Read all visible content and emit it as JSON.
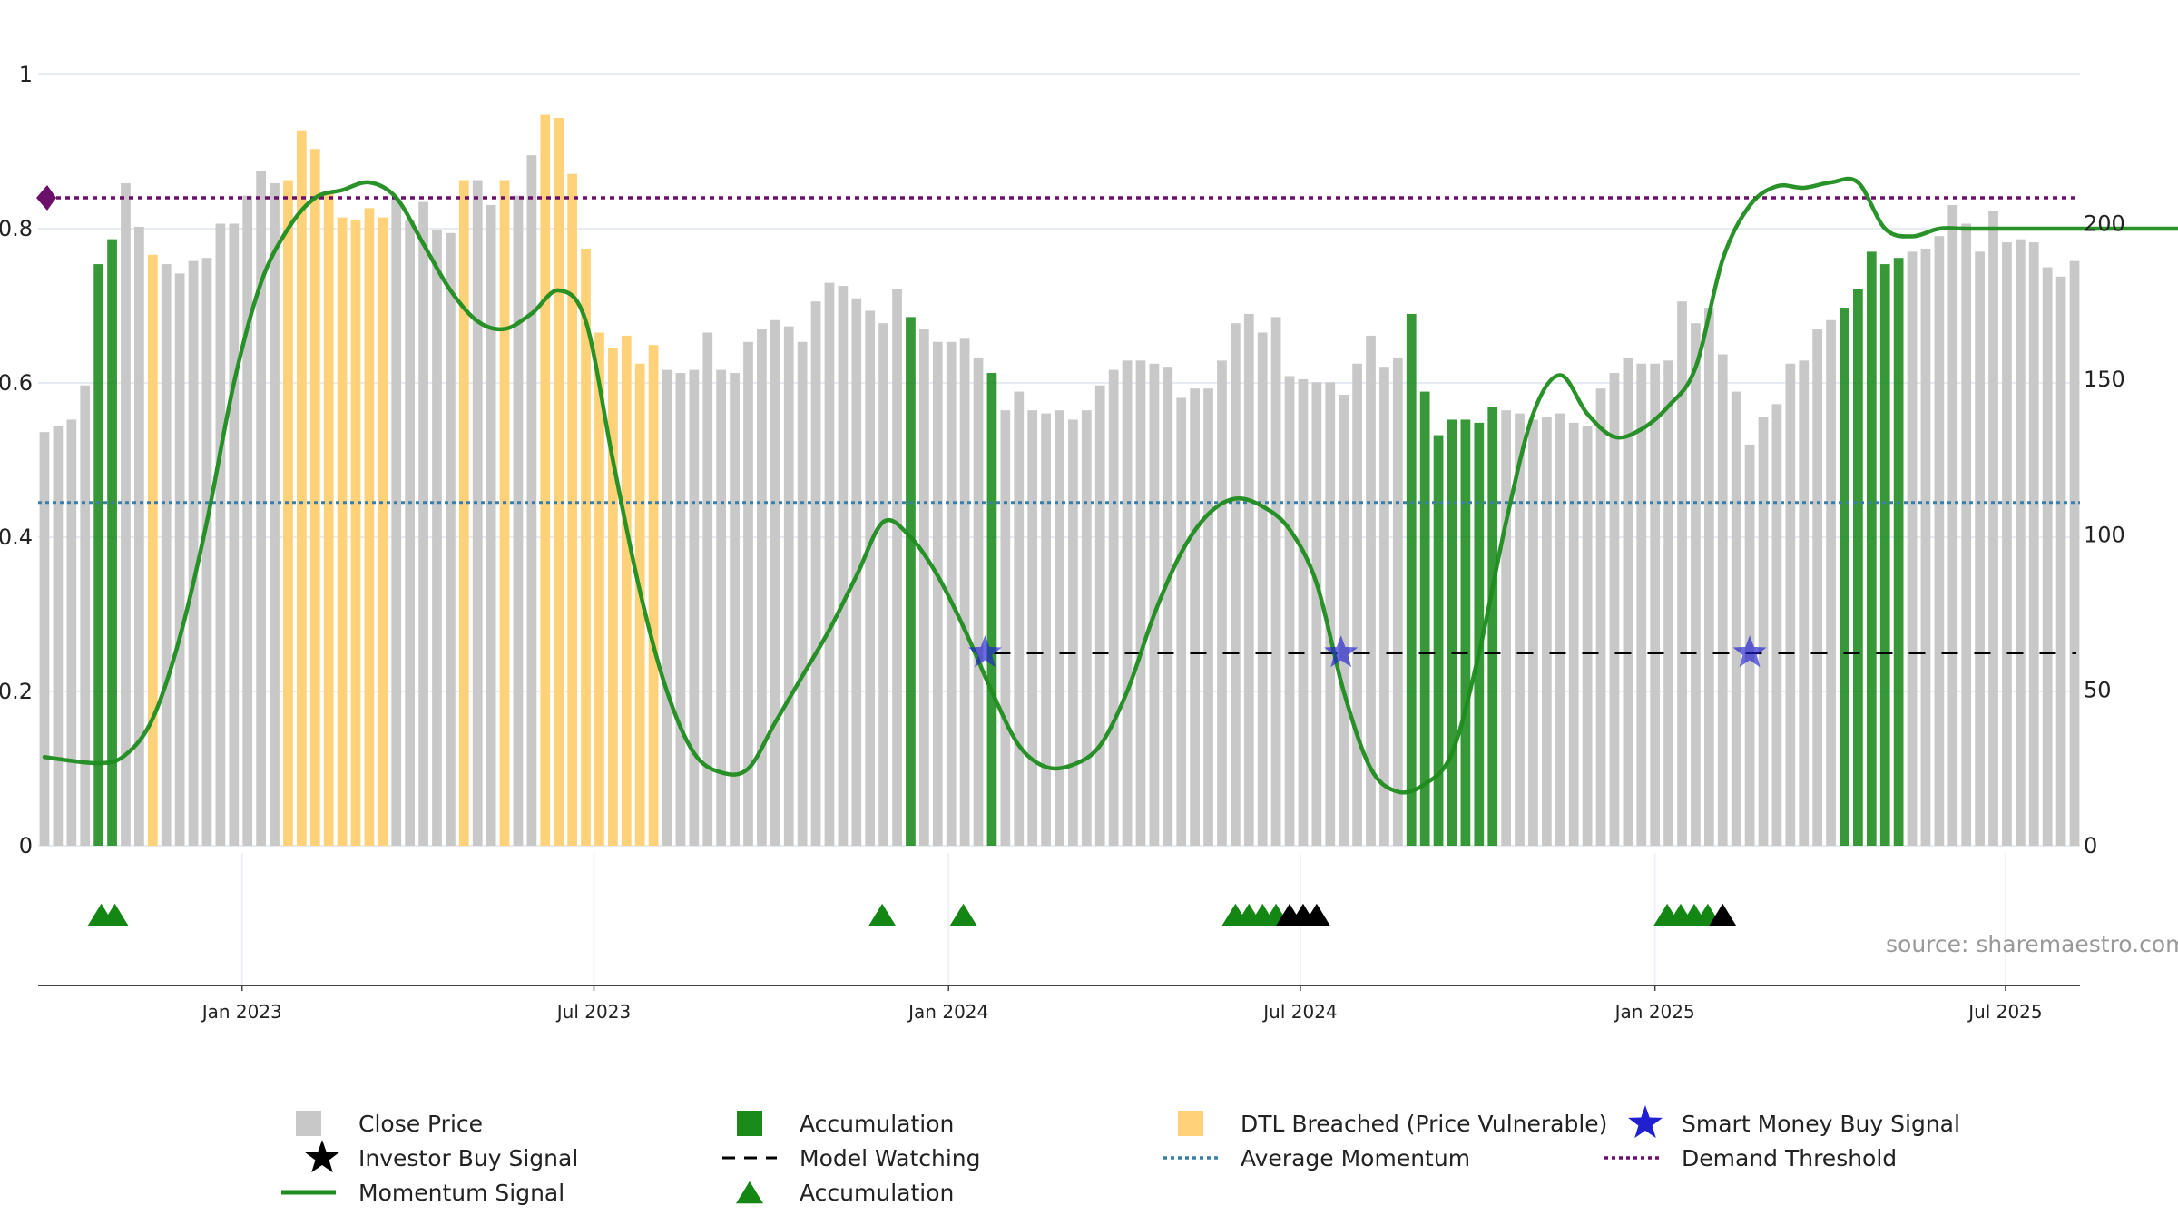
{
  "source_text": "source: sharemaestro.com",
  "colors": {
    "close_price": "#c8c8c8",
    "accumulation": "#1a8a1a",
    "dtl_breached": "#ffd27a",
    "momentum": "#1e8c1e",
    "average_momentum": "#3a7fa8",
    "demand_threshold": "#6b0f6b",
    "smart_money": "#2020d0",
    "investor": "#000000",
    "model_watching": "#000000",
    "accum_marker": "#138613"
  },
  "chart_data": {
    "type": "bar",
    "left_axis": {
      "ticks": [
        "0",
        "0.2",
        "0.4",
        "0.6",
        "0.8",
        "1"
      ],
      "range": [
        0,
        1
      ]
    },
    "right_axis": {
      "ticks": [
        "0",
        "50",
        "100",
        "150",
        "200"
      ],
      "range": [
        0,
        248
      ]
    },
    "x_ticks": [
      "Jan 2023",
      "Jul 2023",
      "Jan 2024",
      "Jul 2024",
      "Jan 2025",
      "Jul 2025"
    ],
    "x_tick_weeks": [
      14.6,
      40.6,
      66.8,
      92.8,
      119.0,
      144.9
    ],
    "close_price": [
      133,
      135,
      137,
      148,
      187,
      195,
      213,
      199,
      190,
      187,
      184,
      188,
      189,
      200,
      200,
      209,
      217,
      213,
      214,
      230,
      224,
      210,
      202,
      201,
      205,
      202,
      208,
      201,
      207,
      198,
      197,
      214,
      214,
      206,
      214,
      209,
      222,
      235,
      234,
      216,
      192,
      165,
      160,
      164,
      155,
      161,
      153,
      152,
      153,
      165,
      153,
      152,
      162,
      166,
      169,
      167,
      162,
      175,
      181,
      180,
      176,
      172,
      168,
      179,
      170,
      166,
      162,
      162,
      163,
      157,
      152,
      140,
      146,
      140,
      139,
      140,
      137,
      140,
      148,
      153,
      156,
      156,
      155,
      154,
      144,
      147,
      147,
      156,
      168,
      171,
      165,
      170,
      151,
      150,
      149,
      149,
      145,
      155,
      164,
      154,
      157,
      171,
      146,
      132,
      137,
      137,
      136,
      141,
      140,
      139,
      137,
      138,
      139,
      136,
      135,
      147,
      152,
      157,
      155,
      155,
      156,
      175,
      168,
      173,
      158,
      146,
      129,
      138,
      142,
      155,
      156,
      166,
      169,
      173,
      179,
      191,
      187,
      189,
      191,
      192,
      196,
      206,
      200,
      191,
      204,
      194,
      195,
      194,
      186,
      183,
      188
    ],
    "bar_category": [
      "c",
      "c",
      "c",
      "c",
      "a",
      "a",
      "c",
      "c",
      "d",
      "c",
      "c",
      "c",
      "c",
      "c",
      "c",
      "c",
      "c",
      "c",
      "d",
      "d",
      "d",
      "d",
      "d",
      "d",
      "d",
      "d",
      "c",
      "c",
      "c",
      "c",
      "c",
      "d",
      "c",
      "c",
      "d",
      "c",
      "c",
      "d",
      "d",
      "d",
      "d",
      "d",
      "d",
      "d",
      "d",
      "d",
      "c",
      "c",
      "c",
      "c",
      "c",
      "c",
      "c",
      "c",
      "c",
      "c",
      "c",
      "c",
      "c",
      "c",
      "c",
      "c",
      "c",
      "c",
      "a",
      "c",
      "c",
      "c",
      "c",
      "c",
      "a",
      "c",
      "c",
      "c",
      "c",
      "c",
      "c",
      "c",
      "c",
      "c",
      "c",
      "c",
      "c",
      "c",
      "c",
      "c",
      "c",
      "c",
      "c",
      "c",
      "c",
      "c",
      "c",
      "c",
      "c",
      "c",
      "c",
      "c",
      "c",
      "c",
      "c",
      "a",
      "a",
      "a",
      "a",
      "a",
      "a",
      "a",
      "c",
      "c",
      "c",
      "c",
      "c",
      "c",
      "c",
      "c",
      "c",
      "c",
      "c",
      "c",
      "c",
      "c",
      "c",
      "c",
      "c",
      "c",
      "c",
      "c",
      "c",
      "c",
      "c",
      "c",
      "c",
      "a",
      "a",
      "a",
      "a",
      "a",
      "c",
      "c",
      "c",
      "c",
      "c",
      "c",
      "c",
      "c",
      "c",
      "c",
      "c",
      "c",
      "c",
      "c",
      "c"
    ],
    "momentum_signal": {
      "weeks": [
        0,
        4,
        6,
        8,
        10,
        12,
        14,
        16,
        18,
        20,
        22,
        24,
        26,
        28,
        30,
        32,
        34,
        36,
        38,
        40,
        42,
        44,
        46,
        48,
        50,
        52,
        54,
        56,
        58,
        60,
        62,
        64,
        66,
        68,
        70,
        72,
        74,
        76,
        78,
        80,
        82,
        84,
        86,
        88,
        90,
        92,
        94,
        96,
        98,
        100,
        102,
        104,
        106,
        108,
        110,
        112,
        114,
        116,
        118,
        120,
        122,
        124,
        126,
        128,
        130,
        132,
        134,
        136,
        138,
        140,
        142,
        144,
        146,
        148,
        150,
        152,
        154,
        156,
        158
      ],
      "values": [
        0.115,
        0.107,
        0.118,
        0.165,
        0.27,
        0.42,
        0.6,
        0.73,
        0.8,
        0.84,
        0.85,
        0.86,
        0.84,
        0.78,
        0.72,
        0.68,
        0.67,
        0.69,
        0.72,
        0.68,
        0.5,
        0.33,
        0.2,
        0.12,
        0.095,
        0.1,
        0.16,
        0.22,
        0.28,
        0.35,
        0.42,
        0.4,
        0.35,
        0.28,
        0.2,
        0.13,
        0.102,
        0.105,
        0.13,
        0.2,
        0.3,
        0.38,
        0.43,
        0.45,
        0.44,
        0.41,
        0.34,
        0.2,
        0.1,
        0.07,
        0.08,
        0.12,
        0.25,
        0.42,
        0.56,
        0.61,
        0.56,
        0.53,
        0.54,
        0.57,
        0.62,
        0.76,
        0.83,
        0.855,
        0.853,
        0.86,
        0.86,
        0.8,
        0.79,
        0.8,
        0.8,
        0.8,
        0.8,
        0.8,
        0.8,
        0.8,
        0.8,
        0.8,
        0.8
      ]
    },
    "average_momentum": 0.445,
    "demand_threshold": 0.84,
    "model_watching_level": 0.25,
    "smart_money_buy_signal_weeks": [
      69.5,
      95.8,
      126.0
    ],
    "accumulation_triangle_weeks": [
      4.2,
      5.2,
      61.9,
      67.9,
      88.0,
      89.0,
      90.0,
      91.0,
      119.9,
      120.9,
      121.9,
      122.9
    ],
    "investor_buy_triangle_weeks": [
      92.0,
      93.0,
      94.0,
      124.0
    ],
    "legend": [
      {
        "label": "Close Price",
        "marker": "square",
        "color_key": "close_price"
      },
      {
        "label": "Accumulation",
        "marker": "square",
        "color_key": "accumulation"
      },
      {
        "label": "DTL Breached (Price Vulnerable)",
        "marker": "square",
        "color_key": "dtl_breached"
      },
      {
        "label": "Smart Money Buy Signal",
        "marker": "star",
        "color_key": "smart_money"
      },
      {
        "label": "Investor Buy Signal",
        "marker": "star",
        "color_key": "investor"
      },
      {
        "label": "Model Watching",
        "marker": "dash",
        "color_key": "model_watching"
      },
      {
        "label": "Average Momentum",
        "marker": "dot",
        "color_key": "average_momentum"
      },
      {
        "label": "Demand Threshold",
        "marker": "dot",
        "color_key": "demand_threshold"
      },
      {
        "label": "Momentum Signal",
        "marker": "line",
        "color_key": "momentum"
      },
      {
        "label": "Accumulation",
        "marker": "triangle",
        "color_key": "accum_marker"
      }
    ]
  }
}
